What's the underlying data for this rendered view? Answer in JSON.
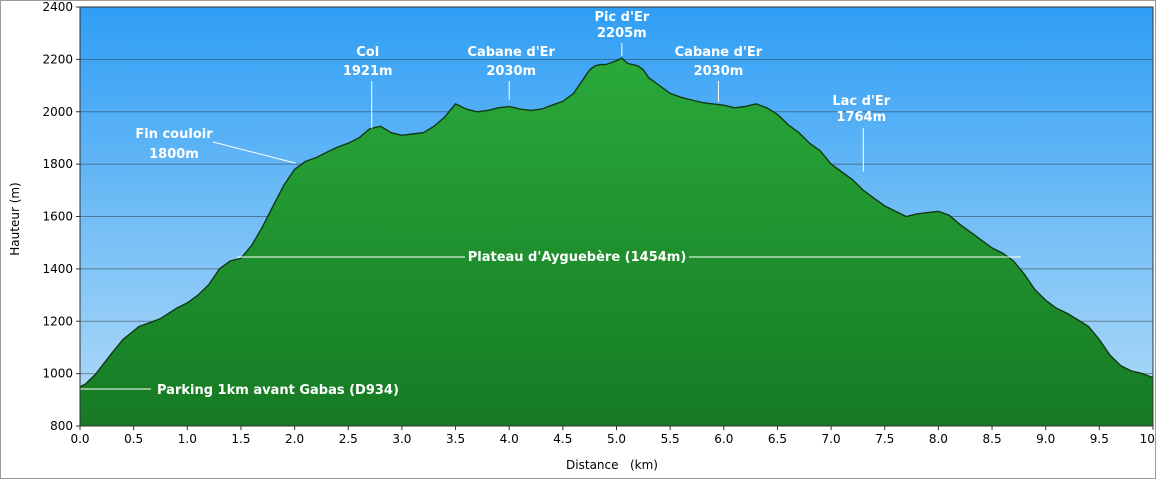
{
  "chart_data": {
    "type": "area",
    "xlabel": "Distance   (km)",
    "ylabel": "Hauteur (m)",
    "xlim": [
      0,
      10
    ],
    "ylim": [
      800,
      2400
    ],
    "x_ticks": [
      "0.0",
      "0.5",
      "1.0",
      "1.5",
      "2.0",
      "2.5",
      "3.0",
      "3.5",
      "4.0",
      "4.5",
      "5.0",
      "5.5",
      "6.0",
      "6.5",
      "7.0",
      "7.5",
      "8.0",
      "8.5",
      "9.0",
      "9.5",
      "10.0"
    ],
    "y_ticks": [
      "800",
      "1000",
      "1200",
      "1400",
      "1600",
      "1800",
      "2000",
      "2200",
      "2400"
    ],
    "grid": true,
    "colors": {
      "sky_top": "#2f9ef5",
      "sky_bottom": "#b4dcf8",
      "fill_top": "#2aa93a",
      "fill_mid": "#1d8a2b",
      "fill_bottom": "#167a24",
      "outline": "#0f3a14"
    },
    "profile": {
      "x": [
        0.0,
        0.05,
        0.15,
        0.3,
        0.4,
        0.55,
        0.65,
        0.75,
        0.9,
        1.0,
        1.1,
        1.2,
        1.3,
        1.4,
        1.5,
        1.6,
        1.7,
        1.8,
        1.9,
        2.0,
        2.1,
        2.2,
        2.3,
        2.4,
        2.5,
        2.6,
        2.7,
        2.8,
        2.9,
        3.0,
        3.1,
        3.2,
        3.3,
        3.4,
        3.5,
        3.6,
        3.7,
        3.8,
        3.9,
        4.0,
        4.1,
        4.2,
        4.3,
        4.4,
        4.5,
        4.6,
        4.7,
        4.75,
        4.8,
        4.85,
        4.9,
        5.0,
        5.05,
        5.1,
        5.2,
        5.25,
        5.3,
        5.4,
        5.5,
        5.6,
        5.7,
        5.8,
        5.9,
        6.0,
        6.1,
        6.2,
        6.3,
        6.4,
        6.5,
        6.6,
        6.7,
        6.8,
        6.9,
        7.0,
        7.1,
        7.2,
        7.3,
        7.4,
        7.5,
        7.6,
        7.7,
        7.8,
        7.9,
        8.0,
        8.1,
        8.2,
        8.3,
        8.4,
        8.5,
        8.6,
        8.7,
        8.8,
        8.9,
        9.0,
        9.1,
        9.2,
        9.3,
        9.4,
        9.5,
        9.6,
        9.7,
        9.8,
        9.9,
        10.0
      ],
      "y": [
        950,
        960,
        1000,
        1080,
        1130,
        1180,
        1195,
        1210,
        1250,
        1270,
        1300,
        1340,
        1400,
        1430,
        1440,
        1490,
        1560,
        1640,
        1720,
        1780,
        1810,
        1825,
        1845,
        1865,
        1880,
        1900,
        1935,
        1945,
        1920,
        1910,
        1915,
        1920,
        1945,
        1980,
        2030,
        2010,
        2000,
        2005,
        2015,
        2020,
        2010,
        2005,
        2010,
        2025,
        2040,
        2070,
        2130,
        2160,
        2175,
        2180,
        2180,
        2195,
        2205,
        2185,
        2175,
        2160,
        2130,
        2100,
        2070,
        2055,
        2045,
        2035,
        2030,
        2025,
        2015,
        2020,
        2030,
        2015,
        1990,
        1950,
        1920,
        1880,
        1850,
        1800,
        1770,
        1740,
        1700,
        1670,
        1640,
        1620,
        1600,
        1610,
        1615,
        1620,
        1605,
        1570,
        1540,
        1510,
        1480,
        1460,
        1430,
        1380,
        1320,
        1280,
        1250,
        1230,
        1205,
        1180,
        1130,
        1070,
        1030,
        1010,
        1000,
        985
      ]
    },
    "annotations": [
      {
        "label": "Pic d'Er",
        "value": "2205m",
        "x": 5.05,
        "y": 2205
      },
      {
        "label": "Col",
        "value": "1921m",
        "x": 2.7,
        "y": 1921
      },
      {
        "label": "Cabane d'Er",
        "value": "2030m",
        "x": 4.0,
        "y": 2030
      },
      {
        "label": "Cabane d'Er",
        "value": "2030m",
        "x": 5.95,
        "y": 2030
      },
      {
        "label": "Lac d'Er",
        "value": "1764m",
        "x": 7.3,
        "y": 1764
      },
      {
        "label": "Fin couloir",
        "value": "1800m",
        "x": 2.0,
        "y": 1800
      },
      {
        "label": "Plateau d'Ayguebère (1454m)",
        "x": 1.5,
        "y": 1454
      },
      {
        "label": "Parking 1km avant Gabas (D934)",
        "x": 0.0,
        "y": 950
      }
    ]
  }
}
